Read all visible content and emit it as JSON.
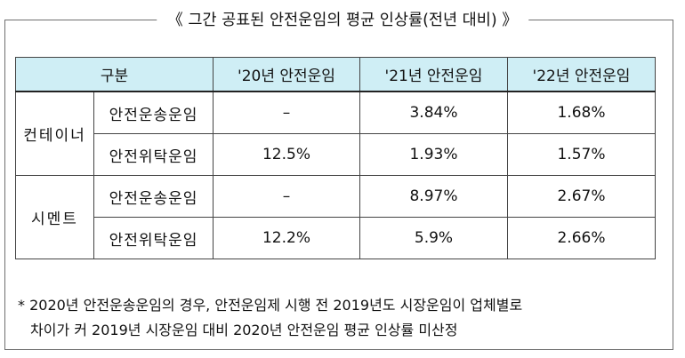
{
  "title": "《 그간 공표된 안전운임의 평균 인상률(전년 대비) 》",
  "table": {
    "headers": [
      "구분",
      "'20년 안전운임",
      "'21년 안전운임",
      "'22년 안전운임"
    ],
    "groups": [
      {
        "name": "컨테이너",
        "rows": [
          {
            "item": "안전운송운임",
            "y20": "–",
            "y21": "3.84%",
            "y22": "1.68%"
          },
          {
            "item": "안전위탁운임",
            "y20": "12.5%",
            "y21": "1.93%",
            "y22": "1.57%"
          }
        ]
      },
      {
        "name": "시멘트",
        "rows": [
          {
            "item": "안전운송운임",
            "y20": "–",
            "y21": "8.97%",
            "y22": "2.67%"
          },
          {
            "item": "안전위탁운임",
            "y20": "12.2%",
            "y21": "5.9%",
            "y22": "2.66%"
          }
        ]
      }
    ]
  },
  "note": {
    "line1": "* 2020년 안전운송운임의 경우, 안전운임제 시행 전 2019년도 시장운임이 업체별로",
    "line2": "차이가 커 2019년 시장운임 대비 2020년 안전운임 평균 인상률 미산정"
  }
}
